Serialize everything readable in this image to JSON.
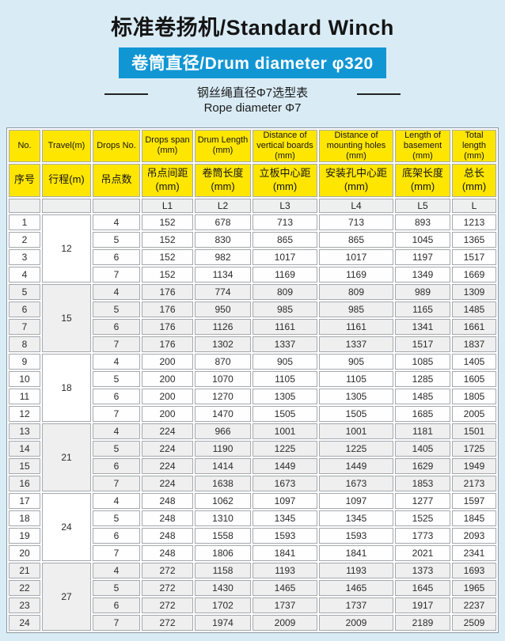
{
  "page": {
    "background_color": "#d9ecf6"
  },
  "header": {
    "title": "标准卷扬机/Standard Winch",
    "banner": "卷筒直径/Drum diameter φ320",
    "banner_color": "#1196d4",
    "subtitle_zh": "钢丝绳直径Φ7选型表",
    "subtitle_en": "Rope diameter Φ7"
  },
  "table": {
    "header_color": "#ffe600",
    "headers_en": [
      "No.",
      "Travel(m)",
      "Drops No.",
      "Drops span\n(mm)",
      "Drum Length\n(mm)",
      "Distance of\nvertical boards\n(mm)",
      "Distance of\nmounting holes\n(mm)",
      "Length of\nbasement\n(mm)",
      "Total\nlength\n(mm)"
    ],
    "headers_zh": [
      "序号",
      "行程(m)",
      "吊点数",
      "吊点间距\n(mm)",
      "卷筒长度\n(mm)",
      "立板中心距\n(mm)",
      "安装孔中心距\n(mm)",
      "底架长度\n(mm)",
      "总长\n(mm)"
    ],
    "symbol_row": [
      "",
      "",
      "",
      "L1",
      "L2",
      "L3",
      "L4",
      "L5",
      "L"
    ],
    "groups": [
      {
        "travel": "12",
        "shaded": false,
        "rows": [
          [
            "1",
            "4",
            "152",
            "678",
            "713",
            "713",
            "893",
            "1213"
          ],
          [
            "2",
            "5",
            "152",
            "830",
            "865",
            "865",
            "1045",
            "1365"
          ],
          [
            "3",
            "6",
            "152",
            "982",
            "1017",
            "1017",
            "1197",
            "1517"
          ],
          [
            "4",
            "7",
            "152",
            "1134",
            "1169",
            "1169",
            "1349",
            "1669"
          ]
        ]
      },
      {
        "travel": "15",
        "shaded": true,
        "rows": [
          [
            "5",
            "4",
            "176",
            "774",
            "809",
            "809",
            "989",
            "1309"
          ],
          [
            "6",
            "5",
            "176",
            "950",
            "985",
            "985",
            "1165",
            "1485"
          ],
          [
            "7",
            "6",
            "176",
            "1126",
            "1161",
            "1161",
            "1341",
            "1661"
          ],
          [
            "8",
            "7",
            "176",
            "1302",
            "1337",
            "1337",
            "1517",
            "1837"
          ]
        ]
      },
      {
        "travel": "18",
        "shaded": false,
        "rows": [
          [
            "9",
            "4",
            "200",
            "870",
            "905",
            "905",
            "1085",
            "1405"
          ],
          [
            "10",
            "5",
            "200",
            "1070",
            "1105",
            "1105",
            "1285",
            "1605"
          ],
          [
            "11",
            "6",
            "200",
            "1270",
            "1305",
            "1305",
            "1485",
            "1805"
          ],
          [
            "12",
            "7",
            "200",
            "1470",
            "1505",
            "1505",
            "1685",
            "2005"
          ]
        ]
      },
      {
        "travel": "21",
        "shaded": true,
        "rows": [
          [
            "13",
            "4",
            "224",
            "966",
            "1001",
            "1001",
            "1181",
            "1501"
          ],
          [
            "14",
            "5",
            "224",
            "1190",
            "1225",
            "1225",
            "1405",
            "1725"
          ],
          [
            "15",
            "6",
            "224",
            "1414",
            "1449",
            "1449",
            "1629",
            "1949"
          ],
          [
            "16",
            "7",
            "224",
            "1638",
            "1673",
            "1673",
            "1853",
            "2173"
          ]
        ]
      },
      {
        "travel": "24",
        "shaded": false,
        "rows": [
          [
            "17",
            "4",
            "248",
            "1062",
            "1097",
            "1097",
            "1277",
            "1597"
          ],
          [
            "18",
            "5",
            "248",
            "1310",
            "1345",
            "1345",
            "1525",
            "1845"
          ],
          [
            "19",
            "6",
            "248",
            "1558",
            "1593",
            "1593",
            "1773",
            "2093"
          ],
          [
            "20",
            "7",
            "248",
            "1806",
            "1841",
            "1841",
            "2021",
            "2341"
          ]
        ]
      },
      {
        "travel": "27",
        "shaded": true,
        "rows": [
          [
            "21",
            "4",
            "272",
            "1158",
            "1193",
            "1193",
            "1373",
            "1693"
          ],
          [
            "22",
            "5",
            "272",
            "1430",
            "1465",
            "1465",
            "1645",
            "1965"
          ],
          [
            "23",
            "6",
            "272",
            "1702",
            "1737",
            "1737",
            "1917",
            "2237"
          ],
          [
            "24",
            "7",
            "272",
            "1974",
            "2009",
            "2009",
            "2189",
            "2509"
          ]
        ]
      }
    ]
  }
}
